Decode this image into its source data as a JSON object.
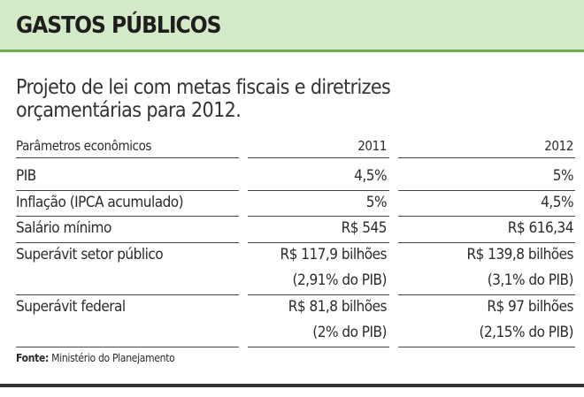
{
  "header": {
    "title": "GASTOS PÚBLICOS"
  },
  "subtitle": [
    "Projeto de lei com metas fiscais e diretrizes",
    "orçamentárias para 2012."
  ],
  "table": {
    "columns": [
      "Parâmetros econômicos",
      "2011",
      "2012"
    ],
    "rows": [
      [
        "PIB",
        "4,5%",
        "5%"
      ],
      [
        "Inflação (IPCA acumulado)",
        "5%",
        "4,5%"
      ],
      [
        "Salário mínimo",
        "R$ 545",
        "R$ 616,34"
      ],
      [
        "Superávit setor público",
        "R$ 117,9 bilhões",
        "R$ 139,8 bilhões"
      ],
      [
        null,
        "(2,91% do PIB)",
        "(3,1% do PIB)"
      ],
      [
        "Superávit federal",
        "R$ 81,8 bilhões",
        "R$ 97 bilhões"
      ],
      [
        null,
        "(2% do PIB)",
        "(2,15% do PIB)"
      ]
    ]
  },
  "source": {
    "label": "Fonte:",
    "text": "Ministério do Planejamento"
  }
}
